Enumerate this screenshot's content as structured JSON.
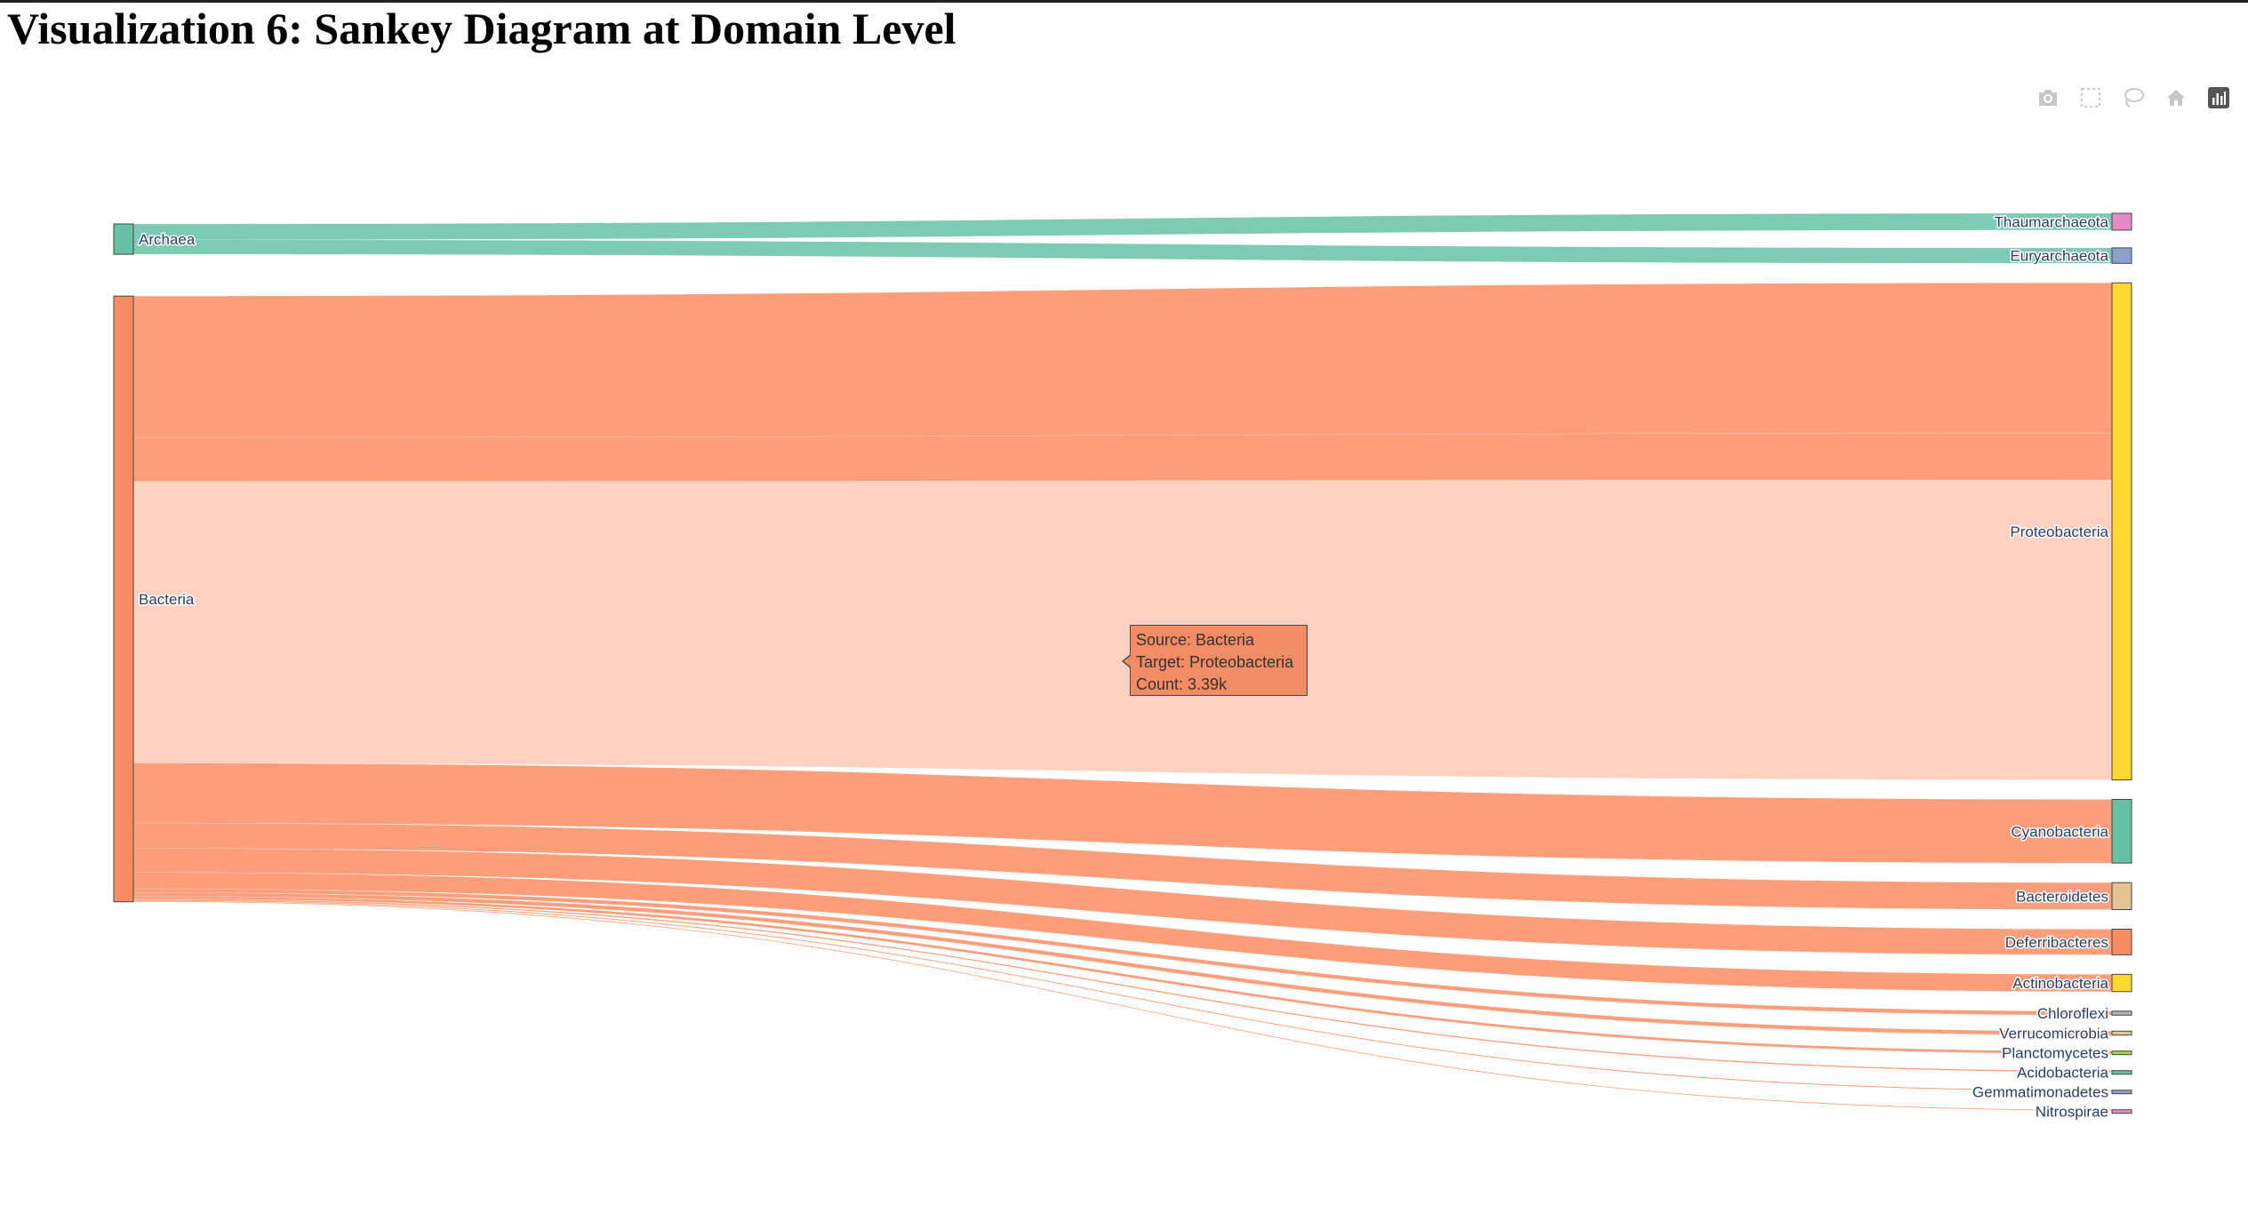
{
  "page": {
    "title": "Visualization 6: Sankey Diagram at Domain Level"
  },
  "modebar": {
    "icons": [
      "camera-icon",
      "box-select-icon",
      "lasso-icon",
      "home-icon",
      "plotly-logo-icon"
    ]
  },
  "chart_data": {
    "type": "sankey",
    "sources": [
      {
        "name": "Archaea",
        "color": "#66c2a5"
      },
      {
        "name": "Bacteria",
        "color": "#fc8d62"
      }
    ],
    "targets": [
      {
        "name": "Thaumarchaeota",
        "color": "#e78ac3"
      },
      {
        "name": "Euryarchaeota",
        "color": "#8da0cb"
      },
      {
        "name": "Proteobacteria",
        "color": "#ffd92f"
      },
      {
        "name": "Cyanobacteria",
        "color": "#66c2a5"
      },
      {
        "name": "Bacteroidetes",
        "color": "#e5c494"
      },
      {
        "name": "Deferribacteres",
        "color": "#fc8d62"
      },
      {
        "name": "Actinobacteria",
        "color": "#ffd92f"
      },
      {
        "name": "Chloroflexi",
        "color": "#b3b3b3"
      },
      {
        "name": "Verrucomicrobia",
        "color": "#e5c494"
      },
      {
        "name": "Planctomycetes",
        "color": "#a6d854"
      },
      {
        "name": "Acidobacteria",
        "color": "#66c2a5"
      },
      {
        "name": "Gemmatimonadetes",
        "color": "#8da0cb"
      },
      {
        "name": "Nitrospirae",
        "color": "#e78ac3"
      }
    ],
    "links": [
      {
        "source": "Archaea",
        "target": "Thaumarchaeota",
        "value": 190
      },
      {
        "source": "Archaea",
        "target": "Euryarchaeota",
        "value": 175
      },
      {
        "source": "Bacteria",
        "target": "Proteobacteria",
        "value": 1700
      },
      {
        "source": "Bacteria",
        "target": "Proteobacteria",
        "value": 530
      },
      {
        "source": "Bacteria",
        "target": "Proteobacteria",
        "value": 3390
      },
      {
        "source": "Bacteria",
        "target": "Cyanobacteria",
        "value": 720
      },
      {
        "source": "Bacteria",
        "target": "Bacteroidetes",
        "value": 305
      },
      {
        "source": "Bacteria",
        "target": "Deferribacteres",
        "value": 290
      },
      {
        "source": "Bacteria",
        "target": "Actinobacteria",
        "value": 195
      },
      {
        "source": "Bacteria",
        "target": "Chloroflexi",
        "value": 45
      },
      {
        "source": "Bacteria",
        "target": "Verrucomicrobia",
        "value": 45
      },
      {
        "source": "Bacteria",
        "target": "Planctomycetes",
        "value": 30
      },
      {
        "source": "Bacteria",
        "target": "Acidobacteria",
        "value": 15
      },
      {
        "source": "Bacteria",
        "target": "Gemmatimonadetes",
        "value": 12
      },
      {
        "source": "Bacteria",
        "target": "Nitrospirae",
        "value": 10
      }
    ],
    "highlighted_link": 4,
    "tooltip": {
      "source_line": "Source: Bacteria",
      "target_line": "Target: Proteobacteria",
      "count_line": "Count: 3.39k"
    }
  }
}
